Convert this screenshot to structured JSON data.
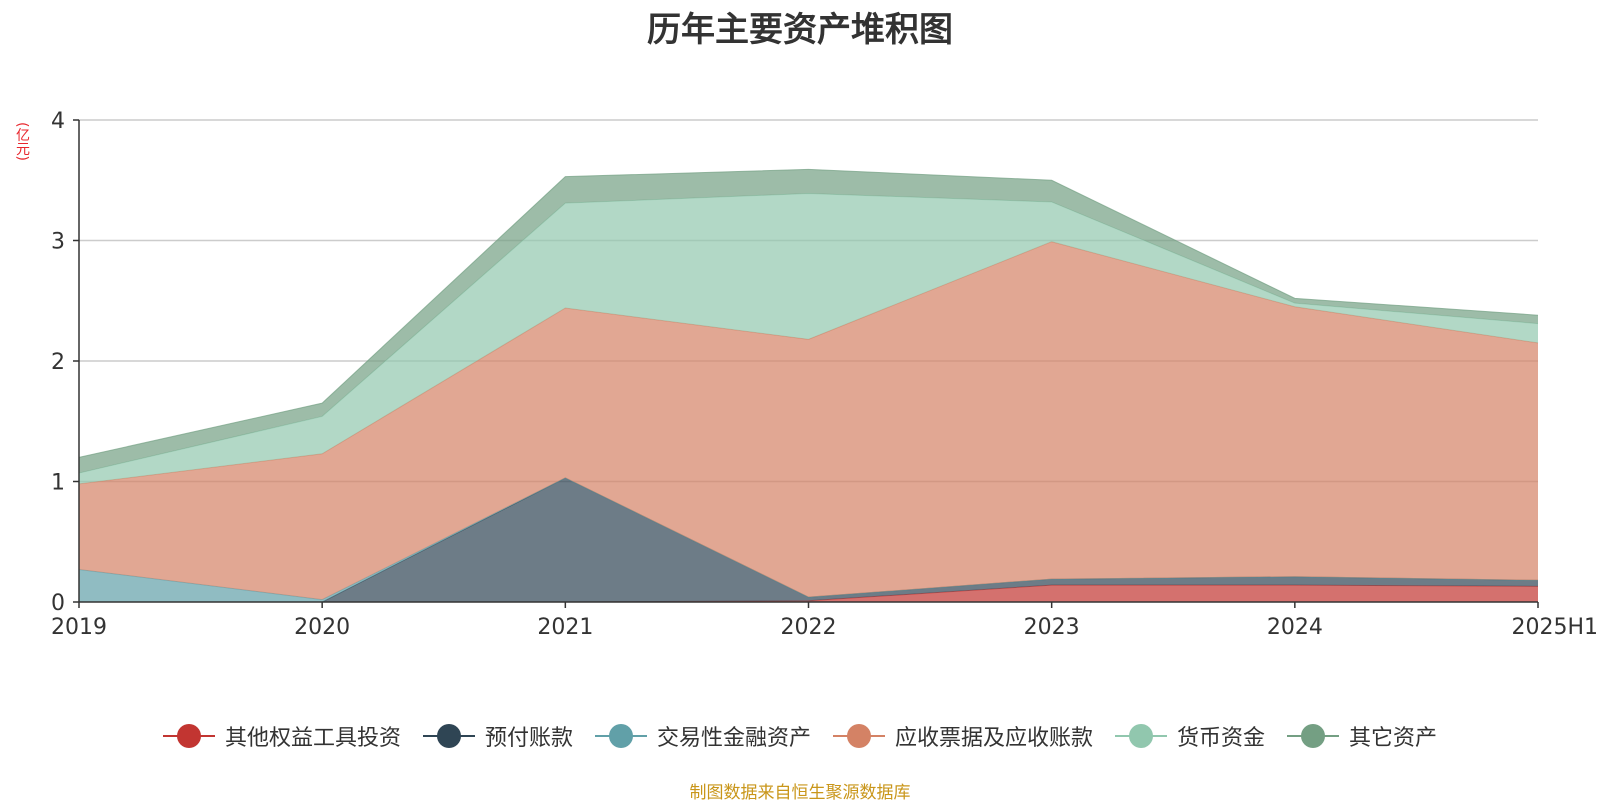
{
  "title": "历年主要资产堆积图",
  "unit": "(亿元)",
  "source_note": "制图数据来自恒生聚源数据库",
  "chart_data": {
    "type": "area",
    "stacked": true,
    "title": "历年主要资产堆积图",
    "ylabel": "(亿元)",
    "categories": [
      "2019",
      "2020",
      "2021",
      "2022",
      "2023",
      "2024",
      "2025H1"
    ],
    "ylim": [
      0,
      4
    ],
    "yticks": [
      0,
      1,
      2,
      3,
      4
    ],
    "grid": true,
    "legend_position": "bottom",
    "series": [
      {
        "name": "其他权益工具投资",
        "color": "#c23531",
        "values": [
          0,
          0,
          0,
          0.01,
          0.14,
          0.14,
          0.13
        ]
      },
      {
        "name": "预付账款",
        "color": "#2f4554",
        "values": [
          0,
          0,
          1.03,
          0.03,
          0.05,
          0.07,
          0.05
        ]
      },
      {
        "name": "交易性金融资产",
        "color": "#61a0a8",
        "values": [
          0.27,
          0.02,
          0,
          0,
          0,
          0,
          0
        ]
      },
      {
        "name": "应收票据及应收账款",
        "color": "#d48265",
        "values": [
          0.71,
          1.21,
          1.41,
          2.14,
          2.8,
          2.24,
          1.97
        ]
      },
      {
        "name": "货币资金",
        "color": "#91c7ae",
        "values": [
          0.09,
          0.31,
          0.87,
          1.21,
          0.33,
          0.03,
          0.16
        ]
      },
      {
        "name": "其它资产",
        "color": "#749f83",
        "values": [
          0.13,
          0.11,
          0.22,
          0.2,
          0.18,
          0.04,
          0.07
        ]
      }
    ]
  }
}
